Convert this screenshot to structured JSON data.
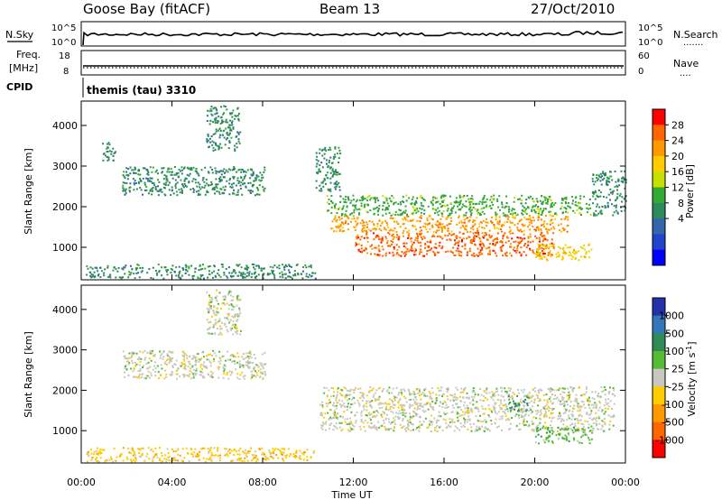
{
  "header": {
    "station": "Goose Bay (fitACF)",
    "beam": "Beam 13",
    "date": "27/Oct/2010"
  },
  "strip_sky": {
    "left_label": "N.Sky",
    "left_ticks": [
      "10^5",
      "10^0"
    ],
    "right_ticks": [
      "10^5",
      "10^0"
    ],
    "right_label": "N.Search",
    "right_dots": "......."
  },
  "strip_freq": {
    "left_label_top": "Freq.",
    "left_label_bottom": "[MHz]",
    "left_ticks": [
      "18",
      "8"
    ],
    "right_ticks": [
      "60",
      "0"
    ],
    "right_label": "Nave",
    "right_dots": "...."
  },
  "cpid": {
    "label": "CPID",
    "value": "themis (tau) 3310"
  },
  "chart_data": [
    {
      "type": "heatmap",
      "name": "power",
      "ylabel": "Slant Range [km]",
      "y_ticks": [
        1000,
        2000,
        3000,
        4000
      ],
      "ylim": [
        200,
        4600
      ],
      "xlim": [
        0,
        24
      ],
      "x_ticks": [
        0,
        4,
        8,
        12,
        16,
        20,
        24
      ],
      "colorbar": {
        "label": "Power [dB]",
        "ticks": [
          "28",
          "24",
          "20",
          "16",
          "12",
          "8",
          "4"
        ],
        "colors": [
          "#ff0000",
          "#ff6600",
          "#ff9900",
          "#ffcc00",
          "#c8e000",
          "#33aa33",
          "#2d8a5a",
          "#3366aa",
          "#2244cc",
          "#0000ff"
        ]
      },
      "regions": [
        {
          "t0": 0.2,
          "t1": 10.3,
          "r0": 250,
          "r1": 600,
          "value": "8"
        },
        {
          "t0": 1.8,
          "t1": 8.1,
          "r0": 2300,
          "r1": 3000,
          "value": "8"
        },
        {
          "t0": 0.9,
          "t1": 1.5,
          "r0": 3100,
          "r1": 3600,
          "value": "8"
        },
        {
          "t0": 5.5,
          "t1": 7.0,
          "r0": 3400,
          "r1": 4500,
          "value": "8"
        },
        {
          "t0": 10.3,
          "t1": 11.4,
          "r0": 2400,
          "r1": 3500,
          "value": "8"
        },
        {
          "t0": 10.8,
          "t1": 22.5,
          "r0": 1800,
          "r1": 2300,
          "value": "12"
        },
        {
          "t0": 11.0,
          "t1": 21.5,
          "r0": 1400,
          "r1": 1800,
          "value": "24"
        },
        {
          "t0": 12.0,
          "t1": 20.8,
          "r0": 800,
          "r1": 1400,
          "value": "28"
        },
        {
          "t0": 20.0,
          "t1": 22.5,
          "r0": 700,
          "r1": 1100,
          "value": "20"
        },
        {
          "t0": 22.5,
          "t1": 24.0,
          "r0": 1800,
          "r1": 2900,
          "value": "8"
        }
      ]
    },
    {
      "type": "heatmap",
      "name": "velocity",
      "ylabel": "Slant Range [km]",
      "xlabel": "Time UT",
      "y_ticks": [
        1000,
        2000,
        3000,
        4000
      ],
      "ylim": [
        200,
        4600
      ],
      "xlim": [
        0,
        24
      ],
      "x_ticks": [
        0,
        4,
        8,
        12,
        16,
        20,
        24
      ],
      "x_tick_labels": [
        "00:00",
        "04:00",
        "08:00",
        "12:00",
        "16:00",
        "20:00",
        "00:00"
      ],
      "colorbar": {
        "label": "Velocity [m s-1]",
        "ticks": [
          "1000",
          "500",
          "100",
          "25",
          "-25",
          "-100",
          "-500",
          "-1000"
        ],
        "colors": [
          "#2233aa",
          "#3377bb",
          "#2e8b57",
          "#55bb33",
          "#c8c8c0",
          "#ffcc00",
          "#ff9900",
          "#ff6600",
          "#ff0000"
        ]
      },
      "regions": [
        {
          "t0": 0.2,
          "t1": 10.3,
          "r0": 250,
          "r1": 600,
          "value": "-25"
        },
        {
          "t0": 1.8,
          "t1": 8.1,
          "r0": 2300,
          "r1": 3000,
          "value": "25"
        },
        {
          "t0": 5.5,
          "t1": 7.0,
          "r0": 3400,
          "r1": 4500,
          "value": "25"
        },
        {
          "t0": 10.5,
          "t1": 23.5,
          "r0": 1000,
          "r1": 2100,
          "value": "25"
        },
        {
          "t0": 20.0,
          "t1": 22.5,
          "r0": 700,
          "r1": 1100,
          "value": "100"
        },
        {
          "t0": 18.8,
          "t1": 19.7,
          "r0": 1500,
          "r1": 1900,
          "value": "500"
        }
      ]
    }
  ]
}
